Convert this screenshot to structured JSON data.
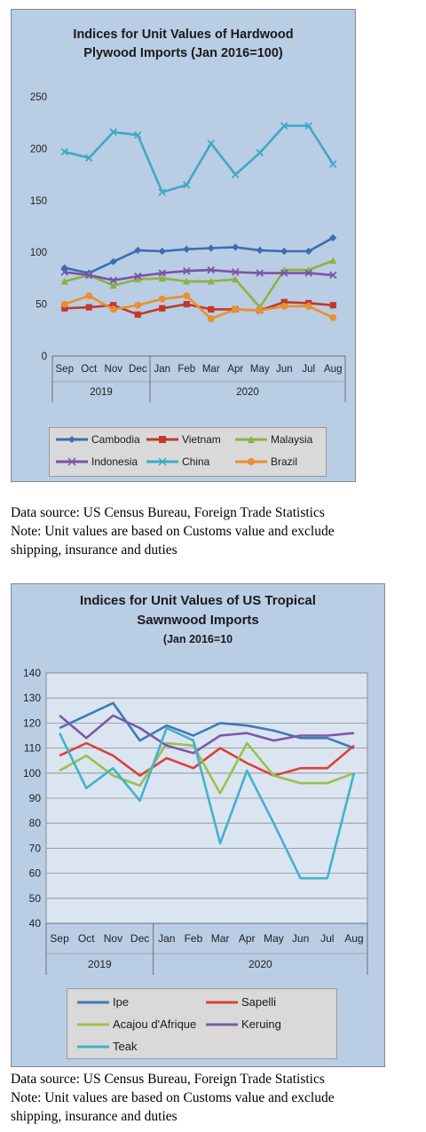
{
  "chart_data": [
    {
      "type": "line",
      "title": "Indices for Unit Values of Hardwood Plywood Imports (Jan 2016=100)",
      "title_lines": [
        "Indices for Unit Values of Hardwood",
        "Plywood Imports (Jan 2016=100)"
      ],
      "categories": [
        "Sep",
        "Oct",
        "Nov",
        "Dec",
        "Jan",
        "Feb",
        "Mar",
        "Apr",
        "May",
        "Jun",
        "Jul",
        "Aug"
      ],
      "groups": [
        {
          "label": "2019",
          "span": 4
        },
        {
          "label": "2020",
          "span": 8
        }
      ],
      "ylim": [
        0,
        250
      ],
      "yticks": [
        0,
        50,
        100,
        150,
        200,
        250
      ],
      "grid": false,
      "legend_position": "bottom",
      "series": [
        {
          "name": "Cambodia",
          "color": "#3d6db0",
          "marker": "diamond",
          "values": [
            85,
            80,
            91,
            102,
            101,
            103,
            104,
            105,
            102,
            101,
            101,
            114
          ]
        },
        {
          "name": "Vietnam",
          "color": "#c0392b",
          "marker": "square",
          "values": [
            46,
            47,
            49,
            40,
            46,
            50,
            45,
            45,
            44,
            52,
            51,
            49
          ]
        },
        {
          "name": "Malaysia",
          "color": "#8db33e",
          "marker": "triangle",
          "values": [
            72,
            78,
            68,
            74,
            75,
            72,
            72,
            74,
            47,
            83,
            83,
            92
          ]
        },
        {
          "name": "Indonesia",
          "color": "#7a54a6",
          "marker": "x",
          "values": [
            81,
            78,
            73,
            77,
            80,
            82,
            83,
            81,
            80,
            80,
            80,
            78
          ]
        },
        {
          "name": "China",
          "color": "#3fa9c4",
          "marker": "x",
          "values": [
            197,
            191,
            216,
            213,
            158,
            165,
            205,
            175,
            196,
            222,
            222,
            185
          ]
        },
        {
          "name": "Brazil",
          "color": "#ec8f2c",
          "marker": "circle",
          "values": [
            50,
            58,
            45,
            49,
            55,
            58,
            36,
            45,
            44,
            48,
            48,
            37
          ]
        }
      ]
    },
    {
      "type": "line",
      "title": "Indices for Unit Values of US Tropical Sawnwood Imports (Jan 2016=10",
      "title_lines": [
        "Indices for Unit Values of US Tropical",
        "Sawnwood Imports"
      ],
      "subtitle": "(Jan 2016=10",
      "categories": [
        "Sep",
        "Oct",
        "Nov",
        "Dec",
        "Jan",
        "Feb",
        "Mar",
        "Apr",
        "May",
        "Jun",
        "Jul",
        "Aug"
      ],
      "groups": [
        {
          "label": "2019",
          "span": 4
        },
        {
          "label": "2020",
          "span": 8
        }
      ],
      "ylim": [
        40,
        140
      ],
      "yticks": [
        40,
        50,
        60,
        70,
        80,
        90,
        100,
        110,
        120,
        130,
        140
      ],
      "grid": true,
      "legend_position": "bottom",
      "series": [
        {
          "name": "Ipe",
          "color": "#3d7ab8",
          "values": [
            118,
            123,
            128,
            113,
            119,
            115,
            120,
            119,
            117,
            114,
            114,
            110
          ]
        },
        {
          "name": "Sapelli",
          "color": "#d9413a",
          "values": [
            107,
            112,
            107,
            99,
            106,
            102,
            110,
            104,
            99,
            102,
            102,
            111
          ]
        },
        {
          "name": "Acajou d'Afrique",
          "color": "#9bc04c",
          "values": [
            101,
            107,
            99,
            95,
            112,
            111,
            92,
            112,
            99,
            96,
            96,
            100
          ]
        },
        {
          "name": "Keruing",
          "color": "#7b59a8",
          "values": [
            123,
            114,
            123,
            118,
            111,
            108,
            115,
            116,
            113,
            115,
            115,
            116
          ]
        },
        {
          "name": "Teak",
          "color": "#43b1cc",
          "values": [
            116,
            94,
            102,
            89,
            118,
            113,
            72,
            101,
            80,
            58,
            58,
            100
          ]
        }
      ]
    }
  ],
  "notes": {
    "source": "Data source: US Census Bureau, Foreign Trade Statistics",
    "note_line1": "Note: Unit values are based on Customs value and exclude",
    "note_line2": "shipping, insurance and duties"
  }
}
